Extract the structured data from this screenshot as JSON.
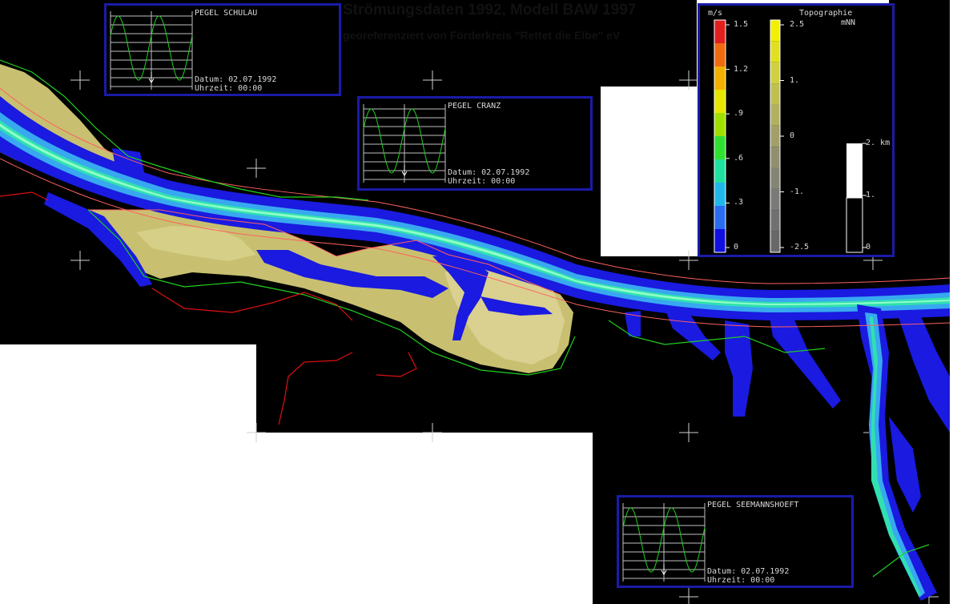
{
  "header": {
    "title": "Strömungsdaten 1992, Modell BAW 1997",
    "subtitle": "georeferenziert von Förderkreis \"Rettet die Elbe\" eV"
  },
  "gauges": [
    {
      "name": "PEGEL SCHULAU",
      "date_label": "Datum: 02.07.1992",
      "time_label": "Uhrzeit: 00:00"
    },
    {
      "name": "PEGEL CRANZ",
      "date_label": "Datum: 02.07.1992",
      "time_label": "Uhrzeit: 00:00"
    },
    {
      "name": "PEGEL SEEMANNSHOEFT",
      "date_label": "Datum: 02.07.1992",
      "time_label": "Uhrzeit: 00:00"
    }
  ],
  "legend": {
    "speed_unit": "m/s",
    "speed_ticks": [
      "1.5",
      "1.2",
      ".9",
      ".6",
      ".3",
      "0"
    ],
    "speed_colors": [
      "#e02020",
      "#f06a10",
      "#f3b000",
      "#e6e600",
      "#a0e000",
      "#30e030",
      "#20e0a0",
      "#20b8e8",
      "#2a6cf0",
      "#1010e0"
    ],
    "topo_title": "Topographie",
    "topo_unit": "mNN",
    "topo_ticks": [
      "2.5",
      "1.",
      "0",
      "-1.",
      "-2.5"
    ],
    "scale_ticks": [
      "2. km",
      "1.",
      "0"
    ]
  },
  "map_colors": {
    "land": "#c8c070",
    "water_deep": "#1a1ae0",
    "current_fast": "#30e0b0",
    "current_mid": "#38a8f0",
    "contour": "#ff5050",
    "shoreline": "#20d020",
    "dike": "#e01010"
  }
}
